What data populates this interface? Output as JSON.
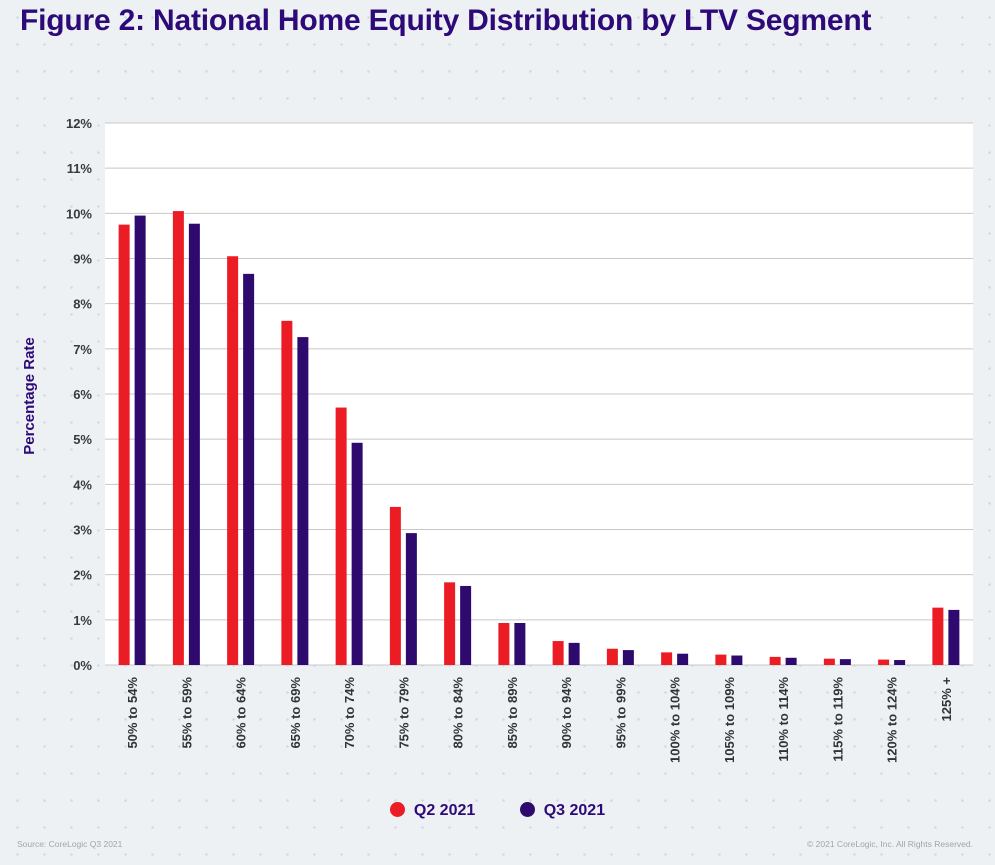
{
  "title": "Figure 2: National Home Equity Distribution by LTV Segment",
  "source": "Source: CoreLogic Q3 2021",
  "copyright": "© 2021 CoreLogic, Inc. All Rights Reserved.",
  "colors": {
    "q2": "#ec1c24",
    "q3": "#2e0a6e",
    "title": "#2e0a78",
    "grid": "#c8c8c8",
    "background": "#edf1f4"
  },
  "chart_data": {
    "type": "bar",
    "title": "Figure 2: National Home Equity Distribution by LTV Segment",
    "ylabel": "Percentage Rate",
    "xlabel": "",
    "ylim": [
      0,
      12
    ],
    "yticks": [
      "0%",
      "1%",
      "2%",
      "3%",
      "4%",
      "5%",
      "6%",
      "7%",
      "8%",
      "9%",
      "10%",
      "11%",
      "12%"
    ],
    "grid": true,
    "legend_position": "bottom",
    "categories": [
      "50% to 54%",
      "55% to 59%",
      "60% to 64%",
      "65% to 69%",
      "70% to 74%",
      "75% to 79%",
      "80% to 84%",
      "85% to 89%",
      "90% to 94%",
      "95% to 99%",
      "100% to 104%",
      "105% to 109%",
      "110% to 114%",
      "115% to 119%",
      "120% to 124%",
      "125% +"
    ],
    "series": [
      {
        "name": "Q2 2021",
        "color": "#ec1c24",
        "values": [
          9.75,
          10.05,
          9.05,
          7.62,
          5.7,
          3.5,
          1.83,
          0.93,
          0.53,
          0.36,
          0.28,
          0.23,
          0.18,
          0.14,
          0.12,
          1.27
        ]
      },
      {
        "name": "Q3 2021",
        "color": "#2e0a6e",
        "values": [
          9.95,
          9.77,
          8.66,
          7.26,
          4.92,
          2.92,
          1.75,
          0.93,
          0.49,
          0.33,
          0.25,
          0.21,
          0.16,
          0.13,
          0.11,
          1.22
        ]
      }
    ]
  }
}
